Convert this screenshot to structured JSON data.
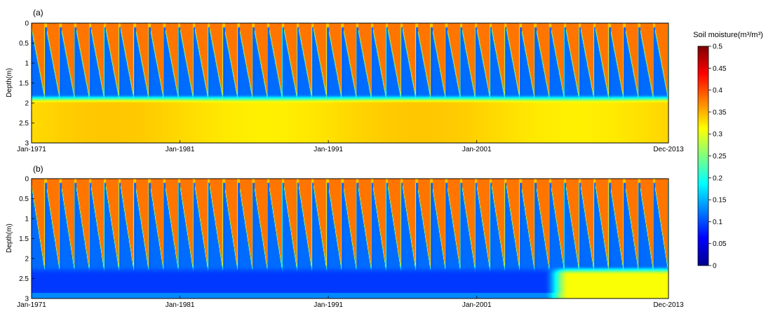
{
  "chart_data": [
    {
      "type": "heatmap",
      "panel_label": "(a)",
      "ylabel": "Depth(m)",
      "yticks": [
        "0",
        "0.5",
        "1",
        "1.5",
        "2",
        "2.5",
        "3"
      ],
      "ylim": [
        0,
        3
      ],
      "xticks": [
        "Jan-1971",
        "Jan-1981",
        "Jan-1991",
        "Jan-2001",
        "Dec-2013"
      ],
      "xtick_years": [
        1971,
        1981,
        1991,
        2001,
        2013.92
      ],
      "xlim": [
        1971,
        2013.92
      ],
      "wet_front_depth_m": 1.85,
      "deep_moisture": 0.33
    },
    {
      "type": "heatmap",
      "panel_label": "(b)",
      "ylabel": "Depth(m)",
      "yticks": [
        "0",
        "0.5",
        "1",
        "1.5",
        "2",
        "2.5",
        "3"
      ],
      "ylim": [
        0,
        3
      ],
      "xticks": [
        "Jan-1971",
        "Jan-1981",
        "Jan-1991",
        "Jan-2001",
        "Dec-2013"
      ],
      "xtick_years": [
        1971,
        1981,
        1991,
        2001,
        2013.92
      ],
      "xlim": [
        1971,
        2013.92
      ],
      "wet_front_depth_m": 2.25,
      "deep_moisture_before": 0.1,
      "deep_moisture_after": 0.3,
      "regime_change_year": 2006
    }
  ],
  "colorbar": {
    "title": "Soil moisture(m³/m³)",
    "ticks": [
      "0.5",
      "0.45",
      "0.4",
      "0.35",
      "0.3",
      "0.25",
      "0.2",
      "0.15",
      "0.1",
      "0.05",
      "0"
    ],
    "range": [
      0,
      0.5
    ],
    "colormap": "jet"
  }
}
